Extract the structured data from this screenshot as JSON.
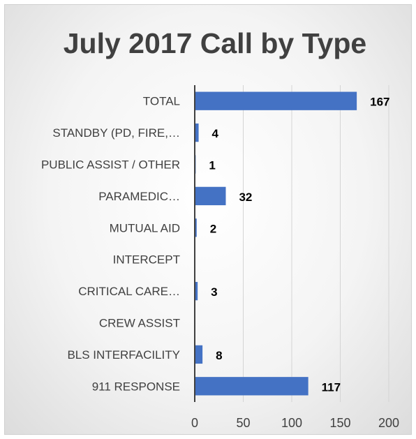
{
  "chart_data": {
    "type": "bar",
    "orientation": "horizontal",
    "title": "July 2017 Call by Type",
    "xlabel": "",
    "ylabel": "",
    "categories": [
      "TOTAL",
      "STANDBY (PD, FIRE,…",
      "PUBLIC ASSIST / OTHER",
      "PARAMEDIC…",
      "MUTUAL AID",
      "INTERCEPT",
      "CRITICAL CARE…",
      "CREW ASSIST",
      "BLS INTERFACILITY",
      "911 RESPONSE"
    ],
    "values": [
      167,
      4,
      1,
      32,
      2,
      0,
      3,
      0,
      8,
      117
    ],
    "data_labels": [
      "167",
      "4",
      "1",
      "32",
      "2",
      "",
      "3",
      "",
      "8",
      "117"
    ],
    "xlim": [
      0,
      200
    ],
    "ticks": [
      0,
      50,
      100,
      150,
      200
    ],
    "grid": true,
    "legend": "none",
    "bar_color": "#4472c4"
  }
}
